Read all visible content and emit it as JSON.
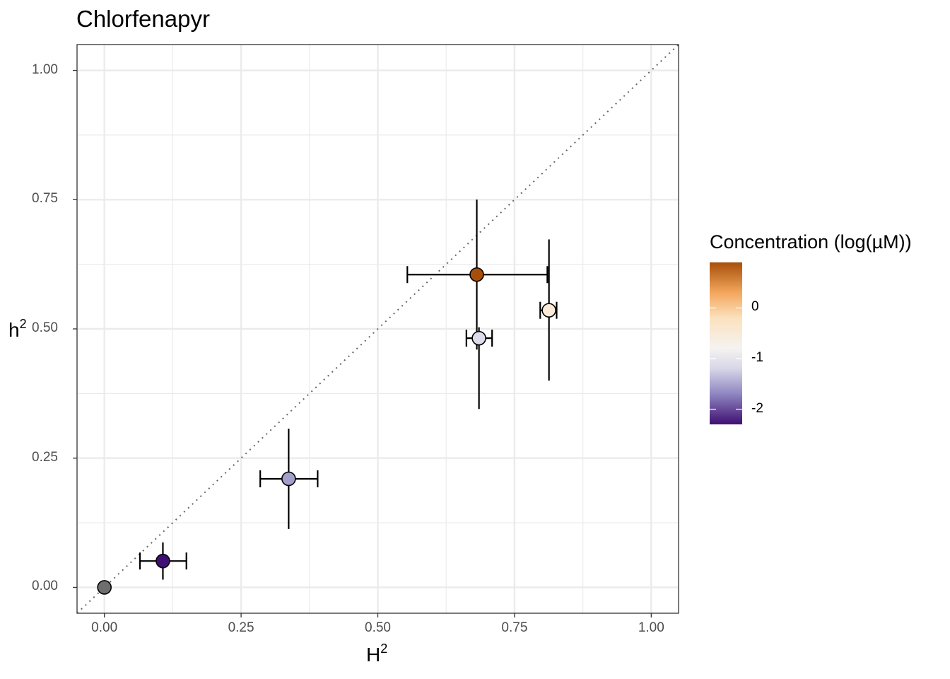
{
  "chart_data": {
    "type": "scatter",
    "title": "Chlorfenapyr",
    "xlabel": {
      "base": "H",
      "sup": "2"
    },
    "ylabel": {
      "base": "h",
      "sup": "2"
    },
    "xlim": [
      -0.05,
      1.05
    ],
    "ylim": [
      -0.05,
      1.05
    ],
    "xticks": [
      "0.00",
      "0.25",
      "0.50",
      "0.75",
      "1.00"
    ],
    "yticks": [
      "0.00",
      "0.25",
      "0.50",
      "0.75",
      "1.00"
    ],
    "reference_line": "y = x (dotted)",
    "points": [
      {
        "x": 0.0,
        "y": 0.0,
        "xlo": null,
        "xhi": null,
        "ylo": null,
        "yhi": null,
        "conc": null,
        "color": "#6e6e6e"
      },
      {
        "x": 0.107,
        "y": 0.051,
        "xlo": 0.065,
        "xhi": 0.15,
        "ylo": 0.015,
        "yhi": 0.087,
        "conc": -2.3,
        "color": "#3f0f73"
      },
      {
        "x": 0.337,
        "y": 0.21,
        "xlo": 0.285,
        "xhi": 0.39,
        "ylo": 0.113,
        "yhi": 0.307,
        "conc": -1.7,
        "color": "#a39fcb"
      },
      {
        "x": 0.685,
        "y": 0.482,
        "xlo": 0.662,
        "xhi": 0.709,
        "ylo": 0.345,
        "yhi": 0.503,
        "conc": -1.1,
        "color": "#dcdceb"
      },
      {
        "x": 0.813,
        "y": 0.536,
        "xlo": 0.797,
        "xhi": 0.827,
        "ylo": 0.4,
        "yhi": 0.673,
        "conc": -0.1,
        "color": "#fbebd8"
      },
      {
        "x": 0.681,
        "y": 0.605,
        "xlo": 0.554,
        "xhi": 0.81,
        "ylo": 0.46,
        "yhi": 0.75,
        "conc": 0.85,
        "color": "#a74f0a"
      }
    ],
    "legend": {
      "title": "Concentration (log(µM))",
      "type": "colorbar",
      "range": [
        -2.3,
        0.9
      ],
      "ticks": [
        {
          "value": 0,
          "label": "0"
        },
        {
          "value": -1,
          "label": "-1"
        },
        {
          "value": -2,
          "label": "-2"
        }
      ],
      "gradient": [
        {
          "value": -2.3,
          "color": "#3f0f73"
        },
        {
          "value": -1.7,
          "color": "#8f86c0"
        },
        {
          "value": -1.2,
          "color": "#d6d6e8"
        },
        {
          "value": -0.8,
          "color": "#f5f3f0"
        },
        {
          "value": -0.2,
          "color": "#fbe1be"
        },
        {
          "value": 0.3,
          "color": "#f3a75d"
        },
        {
          "value": 0.9,
          "color": "#a74f0a"
        }
      ]
    }
  }
}
